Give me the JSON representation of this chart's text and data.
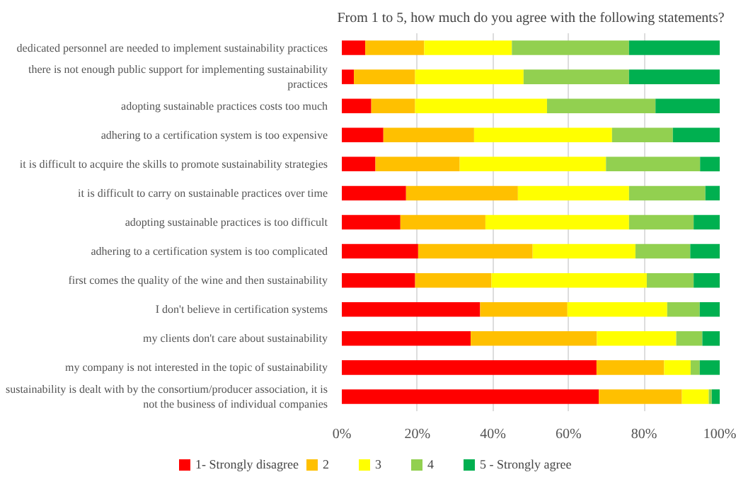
{
  "chart_data": {
    "type": "bar",
    "orientation": "horizontal",
    "stacked": true,
    "title": "From 1 to 5, how much do you agree with the following statements?",
    "categories": [
      "dedicated personnel are needed to implement sustainability practices",
      "there is not enough public support for implementing sustainability practices",
      "adopting sustainable practices costs too much",
      "adhering to a certification system is too expensive",
      "it is difficult to acquire the skills to promote sustainability strategies",
      "it is difficult to carry on sustainable practices over time",
      "adopting sustainable practices is too difficult",
      "adhering to a certification system is too complicated",
      "first comes the quality of the wine and then sustainability",
      "I don't believe in certification systems",
      "my clients don't care about sustainability",
      "my company is not interested in the topic of sustainability",
      "sustainability is dealt with by the consortium/producer association, it is not the business of individual companies"
    ],
    "series": [
      {
        "name": "1- Strongly disagree",
        "color": "#ff0000",
        "values": [
          6.2,
          3.2,
          7.8,
          11,
          8.9,
          17,
          15.5,
          20.2,
          19.4,
          36.6,
          34.1,
          67.4,
          68
        ]
      },
      {
        "name": "2",
        "color": "#ffc000",
        "values": [
          15.6,
          16.2,
          11.6,
          24,
          22.3,
          29.6,
          22.5,
          30.3,
          20.2,
          23.1,
          33.4,
          17.9,
          22
        ]
      },
      {
        "name": "3",
        "color": "#ffff00",
        "values": [
          23.2,
          28.7,
          34.9,
          36.5,
          38.7,
          29.4,
          38,
          27.2,
          41.1,
          26.4,
          21,
          7,
          7.1
        ]
      },
      {
        "name": "4",
        "color": "#92d050",
        "values": [
          31,
          27.9,
          28.7,
          16.1,
          24.9,
          20.2,
          17.1,
          14.5,
          12.4,
          8.6,
          6.9,
          2.4,
          0.8
        ]
      },
      {
        "name": "5 - Strongly agree",
        "color": "#00b050",
        "values": [
          24,
          24,
          17,
          12.4,
          5.2,
          3.8,
          6.9,
          7.8,
          6.9,
          5.3,
          4.6,
          5.3,
          2.1
        ]
      }
    ],
    "xlim": [
      0,
      100
    ],
    "xticks": [
      {
        "value": 0,
        "label": "0%"
      },
      {
        "value": 20,
        "label": "20%"
      },
      {
        "value": 40,
        "label": "40%"
      },
      {
        "value": 60,
        "label": "60%"
      },
      {
        "value": 80,
        "label": "80%"
      },
      {
        "value": 100,
        "label": "100%"
      }
    ],
    "grid": "x",
    "legend": "bottom"
  }
}
